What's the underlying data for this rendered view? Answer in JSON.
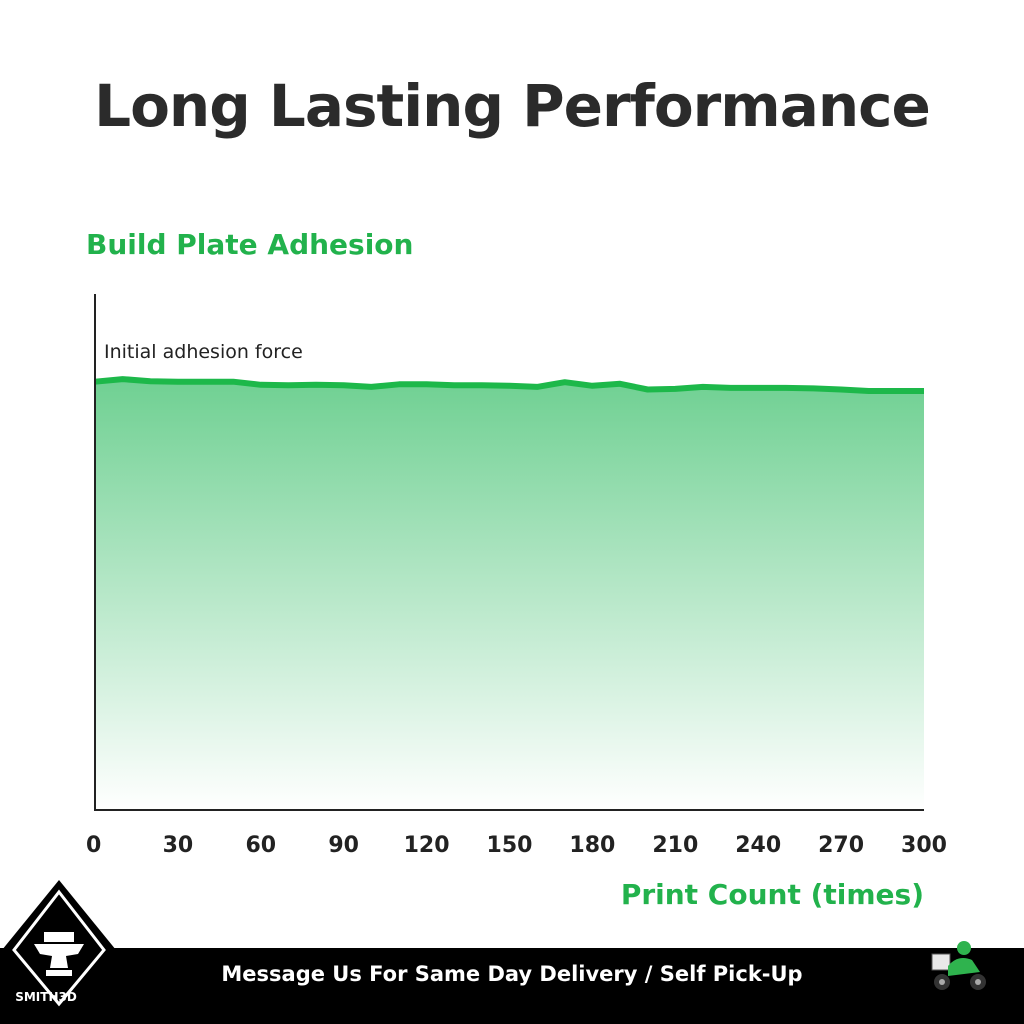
{
  "title": "Long Lasting Performance",
  "chart_data": {
    "type": "area",
    "ylabel": "Build Plate Adhesion",
    "xlabel": "Print Count (times)",
    "annotation": "Initial adhesion force",
    "xlim": [
      0,
      300
    ],
    "ylim": [
      0,
      1
    ],
    "xticks": [
      0,
      30,
      60,
      90,
      120,
      150,
      180,
      210,
      240,
      270,
      300
    ],
    "x": [
      0,
      10,
      20,
      30,
      40,
      50,
      60,
      70,
      80,
      90,
      100,
      110,
      120,
      130,
      140,
      150,
      160,
      170,
      180,
      190,
      200,
      210,
      220,
      230,
      240,
      250,
      260,
      270,
      280,
      290,
      300
    ],
    "values": [
      0.83,
      0.835,
      0.831,
      0.83,
      0.83,
      0.83,
      0.824,
      0.823,
      0.824,
      0.823,
      0.82,
      0.825,
      0.825,
      0.823,
      0.823,
      0.822,
      0.82,
      0.829,
      0.822,
      0.826,
      0.815,
      0.816,
      0.82,
      0.818,
      0.818,
      0.818,
      0.817,
      0.815,
      0.812,
      0.812,
      0.812
    ],
    "grid": false,
    "colors": {
      "line": "#1db84a",
      "fill_top": "#6fd092",
      "fill_bottom": "#ffffff",
      "label": "#22b24c"
    }
  },
  "footer": {
    "message": "Message Us For Same Day Delivery / Self Pick-Up",
    "brand": "SMITH3D"
  }
}
